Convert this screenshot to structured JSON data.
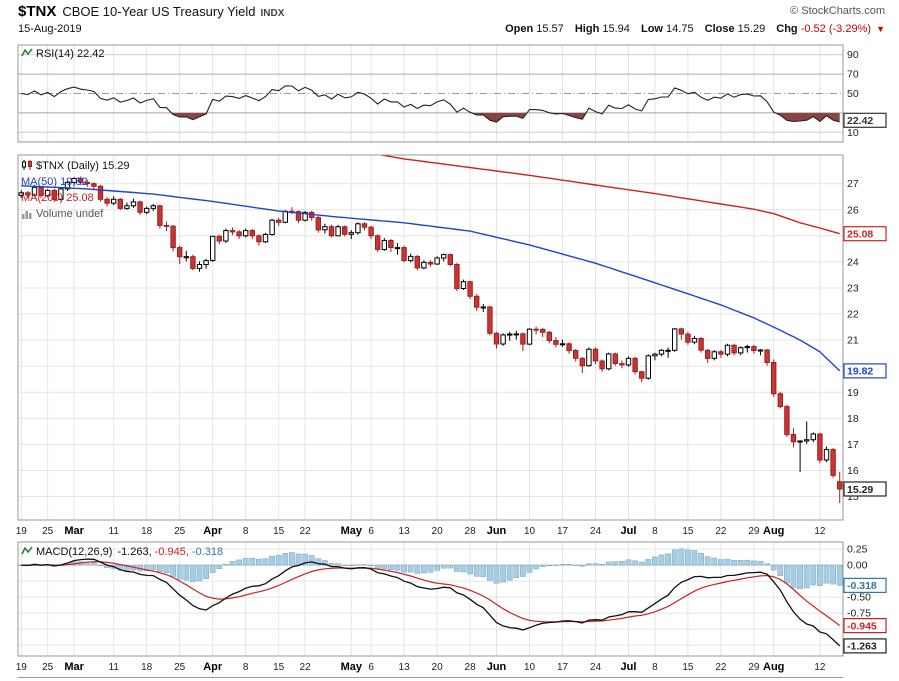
{
  "header": {
    "symbol": "$TNX",
    "title": "CBOE 10-Year US Treasury Yield",
    "exchange": "INDX",
    "date": "15-Aug-2019",
    "copyright": "© StockCharts.com",
    "quote": {
      "open_label": "Open",
      "open": "15.57",
      "high_label": "High",
      "high": "15.94",
      "low_label": "Low",
      "low": "14.75",
      "close_label": "Close",
      "close": "15.29",
      "chg_label": "Chg",
      "chg": "-0.52 (-3.29%)",
      "chg_dir": "▼"
    }
  },
  "legends": {
    "rsi": "RSI(14) 22.42",
    "price_symbol": "$TNX (Daily) 15.29",
    "ma50": "MA(50) 19.82",
    "ma200": "MA(200) 25.08",
    "volume": "Volume undef",
    "macd_name": "MACD(12,26,9)",
    "macd_val": "-1.263,",
    "signal_val": "-0.945,",
    "hist_val": "-0.318"
  },
  "chart_data": {
    "type": "candlestick",
    "title": "$TNX CBOE 10-Year US Treasury Yield (Daily)",
    "colors": {
      "ma50": "#2244cc",
      "ma200": "#cc2222",
      "down_fill": "#cc3333",
      "down_stroke": "#992222",
      "up_fill": "#ffffff",
      "up_stroke": "#000000",
      "hist_fill": "#a7cde2",
      "hist_stroke": "#77a5c4",
      "signal": "#cc2222",
      "macd_line": "#111111",
      "rsi_fill": "#8a4444"
    },
    "x_ticks": [
      {
        "l": "19",
        "i": 0
      },
      {
        "l": "25",
        "i": 4
      },
      {
        "l": "Mar",
        "i": 8,
        "m": true
      },
      {
        "l": "11",
        "i": 14
      },
      {
        "l": "18",
        "i": 19
      },
      {
        "l": "25",
        "i": 24
      },
      {
        "l": "Apr",
        "i": 29,
        "m": true
      },
      {
        "l": "8",
        "i": 34
      },
      {
        "l": "15",
        "i": 39
      },
      {
        "l": "22",
        "i": 43
      },
      {
        "l": "May",
        "i": 50,
        "m": true
      },
      {
        "l": "6",
        "i": 53
      },
      {
        "l": "13",
        "i": 58
      },
      {
        "l": "20",
        "i": 63
      },
      {
        "l": "28",
        "i": 68
      },
      {
        "l": "Jun",
        "i": 72,
        "m": true
      },
      {
        "l": "10",
        "i": 77
      },
      {
        "l": "17",
        "i": 82
      },
      {
        "l": "24",
        "i": 87
      },
      {
        "l": "Jul",
        "i": 92,
        "m": true
      },
      {
        "l": "8",
        "i": 96
      },
      {
        "l": "15",
        "i": 101
      },
      {
        "l": "22",
        "i": 106
      },
      {
        "l": "29",
        "i": 111
      },
      {
        "l": "Aug",
        "i": 114,
        "m": true
      },
      {
        "l": "12",
        "i": 121
      }
    ],
    "rsi_panel": {
      "period": 14,
      "ylim": [
        0,
        100
      ],
      "grid_values": [
        90,
        70,
        50,
        30,
        10
      ],
      "axis_labels": [
        {
          "t": "90",
          "v": 90
        },
        {
          "t": "70",
          "v": 70
        },
        {
          "t": "50",
          "v": 50
        },
        {
          "t": "10",
          "v": 10
        }
      ],
      "oversold_level": 30,
      "last": 22.42,
      "value_box": {
        "text": "22.42",
        "v": 22.42,
        "color": "#333333"
      }
    },
    "price_panel": {
      "ylim": [
        14.1,
        28.1
      ],
      "grid_values": [
        15,
        16,
        17,
        18,
        19,
        20,
        21,
        22,
        23,
        24,
        25,
        26,
        27
      ],
      "axis_labels": [
        {
          "t": "27",
          "v": 27
        },
        {
          "t": "26",
          "v": 26
        },
        {
          "t": "24",
          "v": 24
        },
        {
          "t": "23",
          "v": 23
        },
        {
          "t": "22",
          "v": 22
        },
        {
          "t": "21",
          "v": 21
        },
        {
          "t": "19",
          "v": 19
        },
        {
          "t": "18",
          "v": 18
        },
        {
          "t": "17",
          "v": 17
        },
        {
          "t": "16",
          "v": 16
        },
        {
          "t": "15",
          "v": 15
        }
      ],
      "value_boxes": [
        {
          "text": "25.08",
          "v": 25.08,
          "color": "#cc2222"
        },
        {
          "text": "19.82",
          "v": 19.82,
          "color": "#2244cc"
        },
        {
          "text": "15.29",
          "v": 15.29,
          "color": "#222222"
        }
      ],
      "ma50_anchors": [
        [
          0,
          26.92
        ],
        [
          10,
          26.8
        ],
        [
          20,
          26.6
        ],
        [
          29,
          26.32
        ],
        [
          39,
          25.95
        ],
        [
          48,
          25.72
        ],
        [
          58,
          25.5
        ],
        [
          68,
          25.18
        ],
        [
          77,
          24.65
        ],
        [
          87,
          23.95
        ],
        [
          96,
          23.2
        ],
        [
          106,
          22.35
        ],
        [
          111,
          21.85
        ],
        [
          114,
          21.5
        ],
        [
          118,
          21.0
        ],
        [
          121,
          20.55
        ],
        [
          124,
          19.82
        ]
      ],
      "ma200_anchors": [
        [
          50,
          28.3
        ],
        [
          58,
          27.95
        ],
        [
          68,
          27.62
        ],
        [
          77,
          27.32
        ],
        [
          87,
          26.95
        ],
        [
          96,
          26.62
        ],
        [
          106,
          26.22
        ],
        [
          111,
          26.02
        ],
        [
          114,
          25.85
        ],
        [
          118,
          25.5
        ],
        [
          121,
          25.3
        ],
        [
          124,
          25.08
        ]
      ],
      "ohlc": [
        [
          26.55,
          26.75,
          26.45,
          26.65
        ],
        [
          26.65,
          26.72,
          26.45,
          26.56
        ],
        [
          26.56,
          26.95,
          26.5,
          26.86
        ],
        [
          26.86,
          26.92,
          26.45,
          26.54
        ],
        [
          26.54,
          26.8,
          26.48,
          26.74
        ],
        [
          26.74,
          26.8,
          26.3,
          26.4
        ],
        [
          26.4,
          26.85,
          26.35,
          26.8
        ],
        [
          26.8,
          27.1,
          26.72,
          27.05
        ],
        [
          27.05,
          27.25,
          26.9,
          27.2
        ],
        [
          27.2,
          27.28,
          26.95,
          27.05
        ],
        [
          27.05,
          27.15,
          26.88,
          27.0
        ],
        [
          27.0,
          27.06,
          26.75,
          26.9
        ],
        [
          26.9,
          26.95,
          26.32,
          26.4
        ],
        [
          26.4,
          26.48,
          26.12,
          26.25
        ],
        [
          26.25,
          26.52,
          26.18,
          26.4
        ],
        [
          26.4,
          26.45,
          25.98,
          26.05
        ],
        [
          26.05,
          26.28,
          26.0,
          26.15
        ],
        [
          26.15,
          26.42,
          26.08,
          26.3
        ],
        [
          26.3,
          26.35,
          25.8,
          25.9
        ],
        [
          25.9,
          26.12,
          25.82,
          26.05
        ],
        [
          26.05,
          26.22,
          25.95,
          26.15
        ],
        [
          26.15,
          26.2,
          25.28,
          25.4
        ],
        [
          25.4,
          25.55,
          25.18,
          25.37
        ],
        [
          25.37,
          25.42,
          24.4,
          24.55
        ],
        [
          24.55,
          24.62,
          23.92,
          24.2
        ],
        [
          24.2,
          24.42,
          24.02,
          24.2
        ],
        [
          24.2,
          24.28,
          23.68,
          23.75
        ],
        [
          23.75,
          24.02,
          23.62,
          23.9
        ],
        [
          23.9,
          24.12,
          23.74,
          24.05
        ],
        [
          24.05,
          25.0,
          24.0,
          24.98
        ],
        [
          24.98,
          25.05,
          24.68,
          24.8
        ],
        [
          24.8,
          25.28,
          24.72,
          25.2
        ],
        [
          25.2,
          25.32,
          25.02,
          25.15
        ],
        [
          25.15,
          25.22,
          24.88,
          25.0
        ],
        [
          25.0,
          25.28,
          24.94,
          25.2
        ],
        [
          25.2,
          25.26,
          24.88,
          25.0
        ],
        [
          25.0,
          25.06,
          24.62,
          24.77
        ],
        [
          24.77,
          25.12,
          24.72,
          25.05
        ],
        [
          25.05,
          25.65,
          25.0,
          25.6
        ],
        [
          25.6,
          25.68,
          25.38,
          25.52
        ],
        [
          25.52,
          25.98,
          25.48,
          25.94
        ],
        [
          25.94,
          26.1,
          25.84,
          25.93
        ],
        [
          25.93,
          25.97,
          25.48,
          25.6
        ],
        [
          25.6,
          25.95,
          25.55,
          25.9
        ],
        [
          25.9,
          25.96,
          25.58,
          25.7
        ],
        [
          25.7,
          25.76,
          25.12,
          25.23
        ],
        [
          25.23,
          25.46,
          25.08,
          25.35
        ],
        [
          25.35,
          25.42,
          24.94,
          25.0
        ],
        [
          25.0,
          25.42,
          24.98,
          25.35
        ],
        [
          25.35,
          25.4,
          24.98,
          25.06
        ],
        [
          25.06,
          25.22,
          24.88,
          25.12
        ],
        [
          25.12,
          25.52,
          25.04,
          25.46
        ],
        [
          25.46,
          25.52,
          25.22,
          25.33
        ],
        [
          25.33,
          25.38,
          24.88,
          25.0
        ],
        [
          25.0,
          25.06,
          24.38,
          24.48
        ],
        [
          24.48,
          24.92,
          24.42,
          24.82
        ],
        [
          24.82,
          24.88,
          24.38,
          24.55
        ],
        [
          24.55,
          24.72,
          24.28,
          24.55
        ],
        [
          24.55,
          24.62,
          23.98,
          24.05
        ],
        [
          24.05,
          24.32,
          23.98,
          24.21
        ],
        [
          24.21,
          24.26,
          23.68,
          23.77
        ],
        [
          23.77,
          24.06,
          23.72,
          23.98
        ],
        [
          23.98,
          24.06,
          23.82,
          23.92
        ],
        [
          23.92,
          24.22,
          23.88,
          24.15
        ],
        [
          24.15,
          24.32,
          24.02,
          24.28
        ],
        [
          24.28,
          24.32,
          23.84,
          23.9
        ],
        [
          23.9,
          23.96,
          22.88,
          22.98
        ],
        [
          22.98,
          23.32,
          22.92,
          23.24
        ],
        [
          23.24,
          23.28,
          22.58,
          22.68
        ],
        [
          22.68,
          22.76,
          22.12,
          22.26
        ],
        [
          22.26,
          22.38,
          22.08,
          22.27
        ],
        [
          22.27,
          22.32,
          21.18,
          21.26
        ],
        [
          21.26,
          21.32,
          20.68,
          20.85
        ],
        [
          20.85,
          21.26,
          20.78,
          21.2
        ],
        [
          21.2,
          21.32,
          20.98,
          21.23
        ],
        [
          21.23,
          21.36,
          21.02,
          21.24
        ],
        [
          21.24,
          21.3,
          20.58,
          20.85
        ],
        [
          20.85,
          21.46,
          20.8,
          21.42
        ],
        [
          21.42,
          21.52,
          21.22,
          21.41
        ],
        [
          21.41,
          21.46,
          21.12,
          21.3
        ],
        [
          21.3,
          21.36,
          20.88,
          20.98
        ],
        [
          20.98,
          21.12,
          20.72,
          20.84
        ],
        [
          20.84,
          21.02,
          20.74,
          20.86
        ],
        [
          20.86,
          20.92,
          20.48,
          20.6
        ],
        [
          20.6,
          20.66,
          20.18,
          20.3
        ],
        [
          20.3,
          20.36,
          19.74,
          20.02
        ],
        [
          20.02,
          20.72,
          19.98,
          20.65
        ],
        [
          20.65,
          20.72,
          20.08,
          20.2
        ],
        [
          20.2,
          20.26,
          19.78,
          19.9
        ],
        [
          19.9,
          20.52,
          19.84,
          20.47
        ],
        [
          20.47,
          20.52,
          20.02,
          20.1
        ],
        [
          20.1,
          20.22,
          19.92,
          20.05
        ],
        [
          20.05,
          20.38,
          19.98,
          20.3
        ],
        [
          20.3,
          20.36,
          19.68,
          19.79
        ],
        [
          19.79,
          19.82,
          19.38,
          19.54
        ],
        [
          19.54,
          20.45,
          19.48,
          20.4
        ],
        [
          20.4,
          20.52,
          20.22,
          20.46
        ],
        [
          20.46,
          20.66,
          20.38,
          20.61
        ],
        [
          20.61,
          20.72,
          20.32,
          20.61
        ],
        [
          20.61,
          21.46,
          20.55,
          21.43
        ],
        [
          21.43,
          21.48,
          21.02,
          21.23
        ],
        [
          21.23,
          21.32,
          20.82,
          20.92
        ],
        [
          20.92,
          21.16,
          20.84,
          21.06
        ],
        [
          21.06,
          21.12,
          20.52,
          20.61
        ],
        [
          20.61,
          20.66,
          20.12,
          20.3
        ],
        [
          20.3,
          20.62,
          20.22,
          20.55
        ],
        [
          20.55,
          20.62,
          20.32,
          20.46
        ],
        [
          20.46,
          20.86,
          20.38,
          20.8
        ],
        [
          20.8,
          20.86,
          20.42,
          20.51
        ],
        [
          20.51,
          20.76,
          20.42,
          20.71
        ],
        [
          20.71,
          20.82,
          20.52,
          20.75
        ],
        [
          20.75,
          20.82,
          20.48,
          20.6
        ],
        [
          20.6,
          20.66,
          20.42,
          20.62
        ],
        [
          20.62,
          20.66,
          20.02,
          20.14
        ],
        [
          20.14,
          20.26,
          18.82,
          18.94
        ],
        [
          18.94,
          19.02,
          18.38,
          18.45
        ],
        [
          18.45,
          18.52,
          17.28,
          17.38
        ],
        [
          17.38,
          17.62,
          16.88,
          17.1
        ],
        [
          17.1,
          17.16,
          15.95,
          17.13
        ],
        [
          17.13,
          17.88,
          17.02,
          17.18
        ],
        [
          17.18,
          17.46,
          17.08,
          17.4
        ],
        [
          17.4,
          17.44,
          16.28,
          16.4
        ],
        [
          16.4,
          16.92,
          16.32,
          16.8
        ],
        [
          16.8,
          16.86,
          15.72,
          15.81
        ],
        [
          15.57,
          15.94,
          14.75,
          15.29
        ]
      ]
    },
    "macd_panel": {
      "params": [
        12,
        26,
        9
      ],
      "ylim": [
        -1.42,
        0.36
      ],
      "grid_values": [
        0.25,
        0,
        -0.25,
        -0.5,
        -0.75,
        -1.0,
        -1.25
      ],
      "axis_labels": [
        {
          "t": "0.25",
          "v": 0.25
        },
        {
          "t": "0.00",
          "v": 0
        },
        {
          "t": "-0.50",
          "v": -0.5
        },
        {
          "t": "-0.75",
          "v": -0.75
        }
      ],
      "last": {
        "macd": -1.263,
        "signal": -0.945,
        "hist": -0.318
      },
      "value_boxes": [
        {
          "text": "-0.318",
          "v": -0.318,
          "color": "#3377aa"
        },
        {
          "text": "-0.945",
          "v": -0.945,
          "color": "#cc2222"
        },
        {
          "text": "-1.263",
          "v": -1.263,
          "color": "#222222"
        }
      ]
    }
  }
}
